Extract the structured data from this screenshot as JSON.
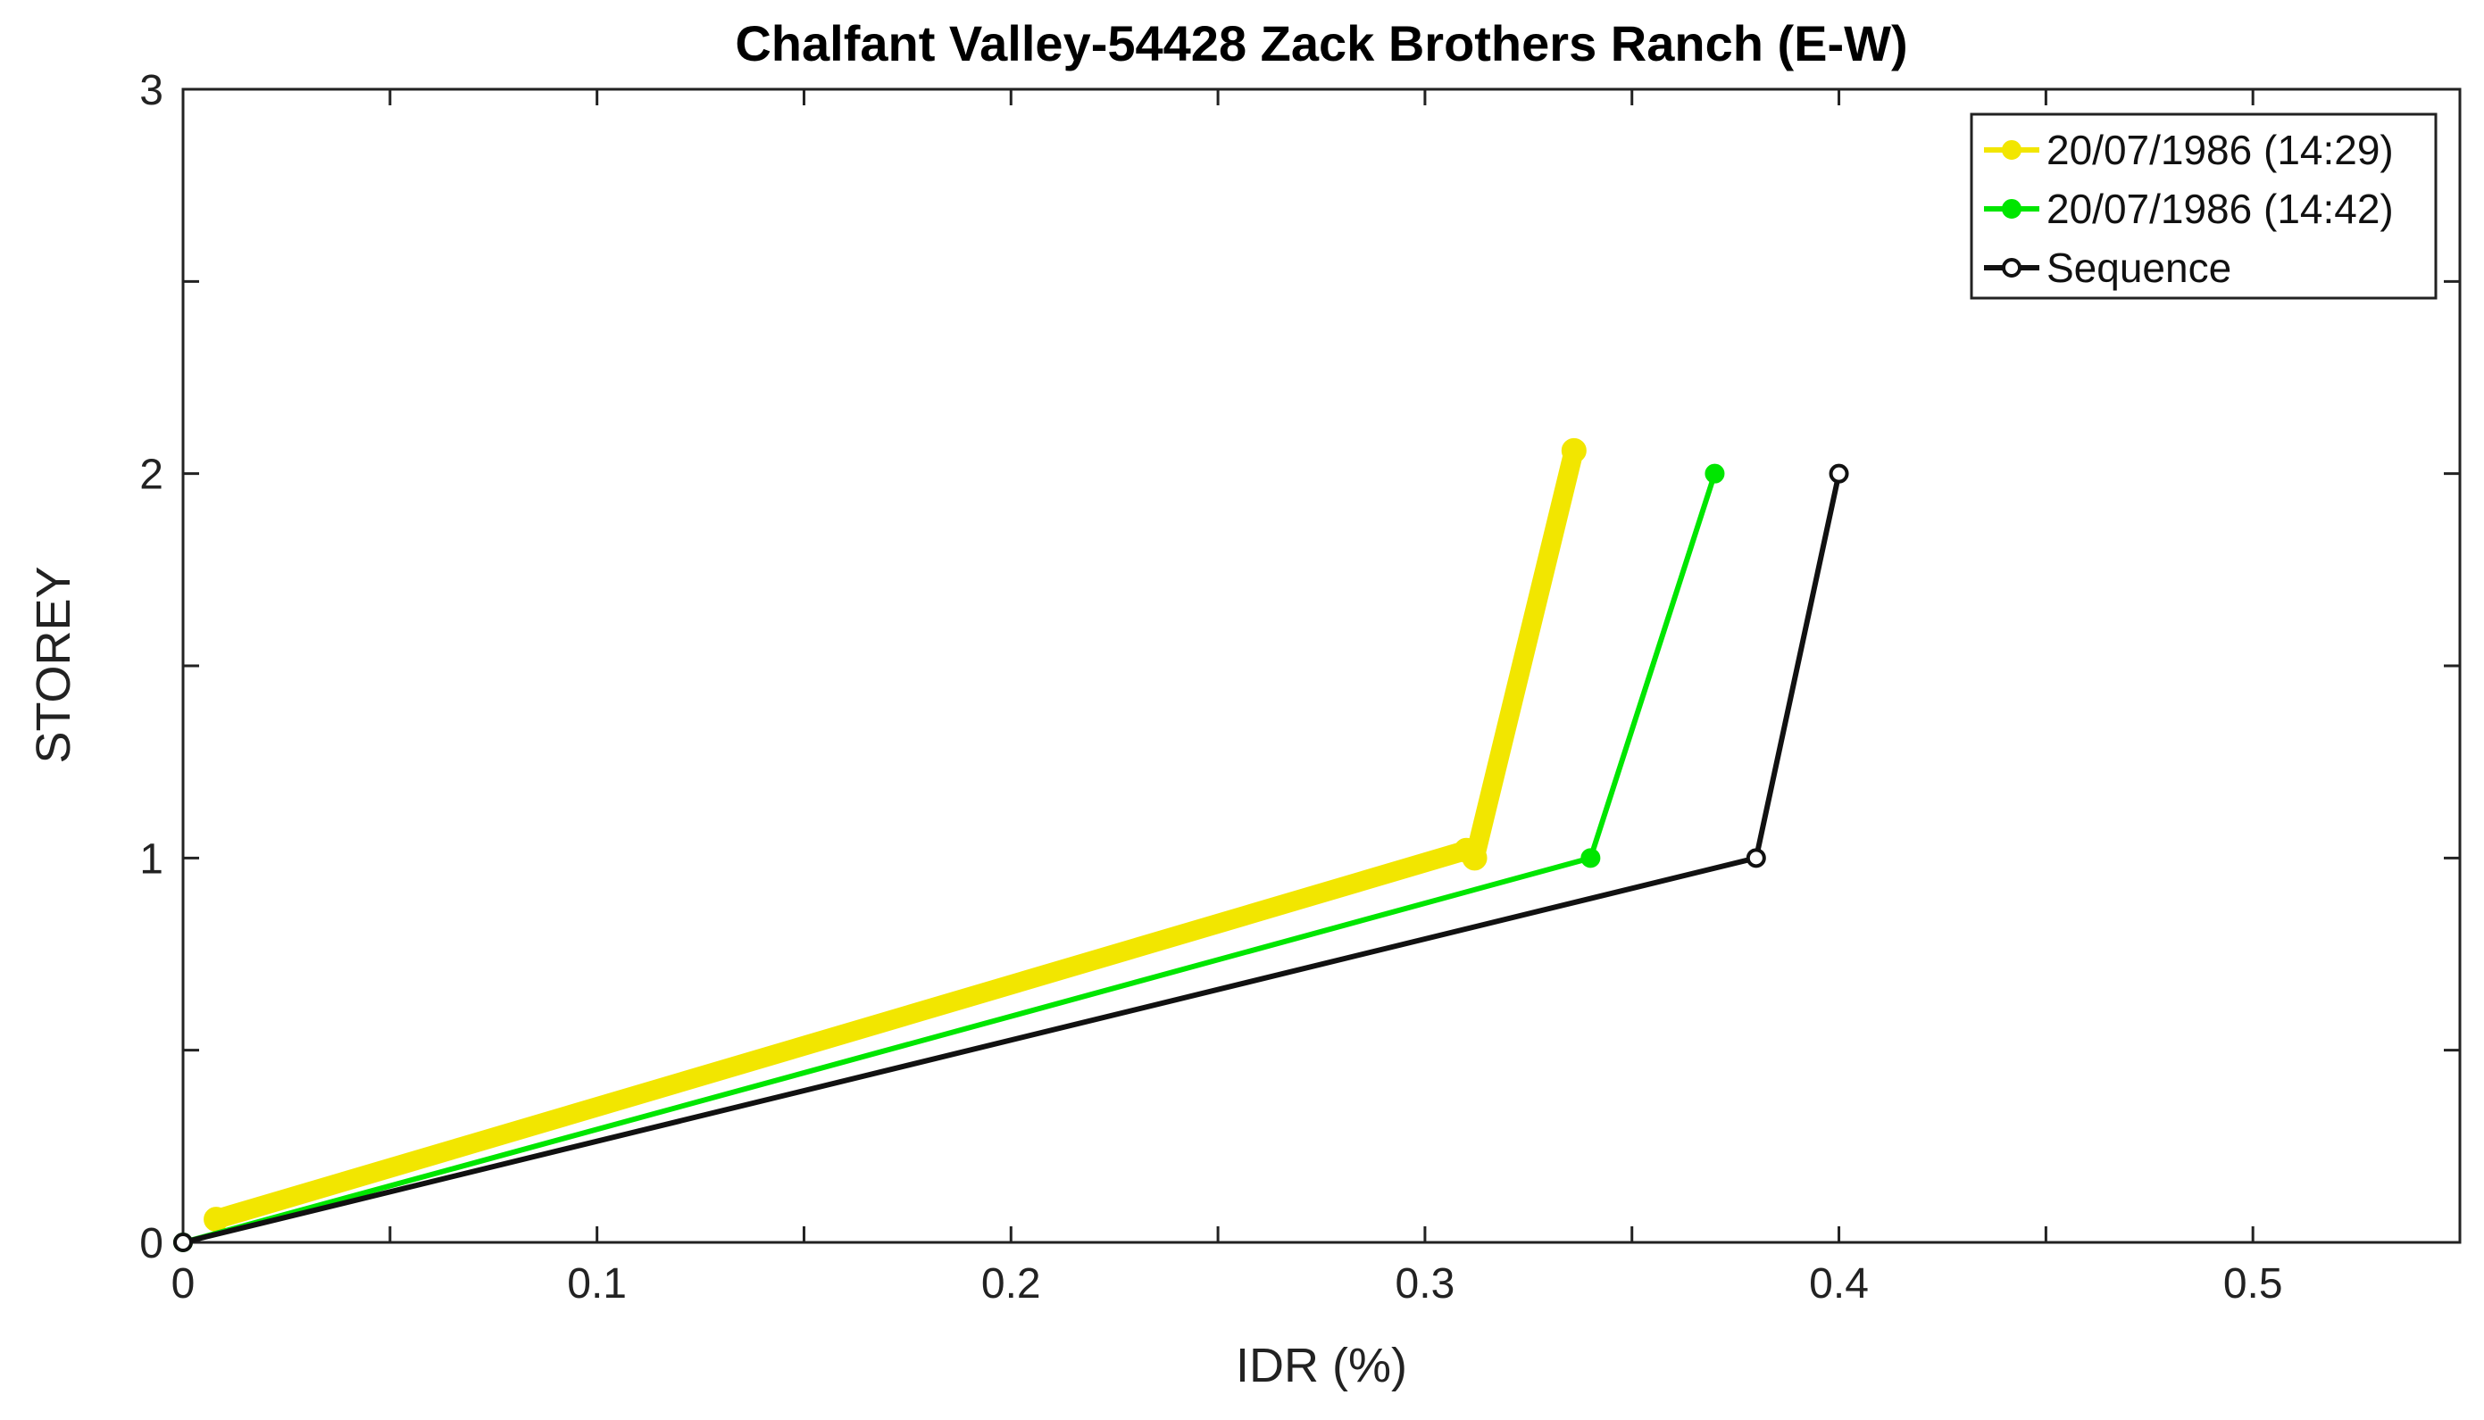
{
  "chart_data": {
    "type": "line",
    "title": "Chalfant Valley-54428 Zack Brothers Ranch (E-W)",
    "xlabel": "IDR (%)",
    "ylabel": "STOREY",
    "xlim": [
      0,
      0.55
    ],
    "ylim": [
      0,
      3
    ],
    "xticks": [
      0,
      0.1,
      0.2,
      0.3,
      0.4,
      0.5
    ],
    "xtick_labels": [
      "0",
      "0.1",
      "0.2",
      "0.3",
      "0.4",
      "0.5"
    ],
    "yticks": [
      0,
      1,
      2,
      3
    ],
    "ytick_labels": [
      "0",
      "1",
      "2",
      "3"
    ],
    "grid": false,
    "legend_position": "top-right",
    "series": [
      {
        "name": "20/07/1986 (14:29)",
        "color": "#F2E600",
        "marker": "filled-circle",
        "thick": true,
        "x": [
          0.008,
          0.31,
          0.312,
          0.336
        ],
        "y": [
          0.06,
          1.02,
          1.0,
          2.06
        ]
      },
      {
        "name": "20/07/1986 (14:42)",
        "color": "#00E600",
        "marker": "filled-circle",
        "thick": false,
        "x": [
          0,
          0.34,
          0.37
        ],
        "y": [
          0,
          1,
          2
        ]
      },
      {
        "name": "Sequence",
        "color": "#111111",
        "marker": "open-circle",
        "thick": false,
        "x": [
          0,
          0.38,
          0.4
        ],
        "y": [
          0,
          1,
          2
        ]
      }
    ]
  }
}
